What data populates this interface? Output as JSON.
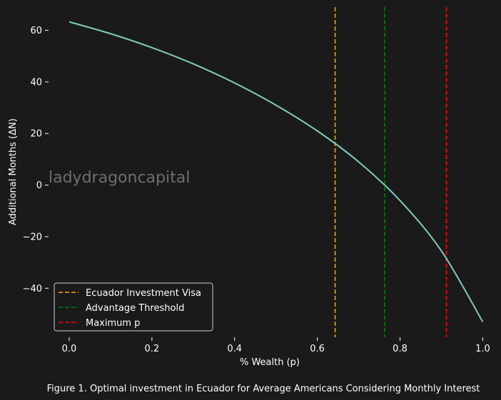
{
  "chart_data": {
    "type": "line",
    "title": "",
    "xlabel": "% Wealth (p)",
    "ylabel": "Additional Months (ΔN)",
    "xlim": [
      -0.05,
      1.02
    ],
    "ylim": [
      -59,
      69
    ],
    "xticks": [
      0.0,
      0.2,
      0.4,
      0.6,
      0.8,
      1.0
    ],
    "xtick_labels": [
      "0.0",
      "0.2",
      "0.4",
      "0.6",
      "0.8",
      "1.0"
    ],
    "yticks": [
      60,
      40,
      20,
      0,
      -20,
      -40
    ],
    "ytick_labels": [
      "60",
      "40",
      "20",
      "0",
      "−20",
      "−40"
    ],
    "grid": false,
    "series": [
      {
        "type": "line",
        "color": "#7fcdbb",
        "x": [
          0.0,
          0.1,
          0.2,
          0.3,
          0.4,
          0.5,
          0.6,
          0.7,
          0.8,
          0.9,
          1.0
        ],
        "y": [
          63.3,
          58.7,
          53.3,
          47.0,
          39.6,
          31.0,
          21.0,
          9.0,
          -6.0,
          -25.5,
          -53.0
        ]
      }
    ],
    "vlines": [
      {
        "name": "Ecuador Investment Visa",
        "x": 0.643,
        "color": "#ffa500",
        "style": "dashed"
      },
      {
        "name": "Advantage Threshold",
        "x": 0.763,
        "color": "#008000",
        "style": "dashed"
      },
      {
        "name": "Maximum p",
        "x": 0.912,
        "color": "#ff0000",
        "style": "dashed"
      }
    ],
    "legend": {
      "placement": "lower-left",
      "entries": [
        "Ecuador Investment Visa",
        "Advantage Threshold",
        "Maximum p"
      ]
    },
    "watermark": "ladydragoncapital",
    "caption": "Figure 1. Optimal investment in Ecuador for Average Americans Considering Monthly Interest"
  },
  "colors": {
    "background": "#1a1a1a",
    "foreground": "#ffffff",
    "watermark": "#6e6e6e"
  }
}
